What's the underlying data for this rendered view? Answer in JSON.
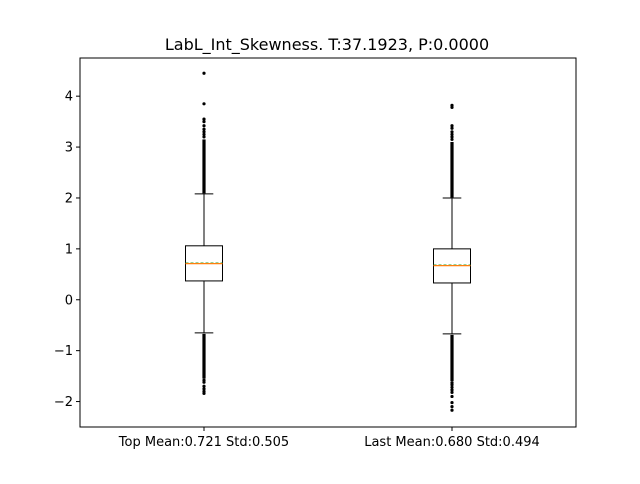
{
  "chart_data": {
    "type": "box",
    "title": "LabL_Int_Skewness. T:37.1923, P:0.0000",
    "categories": [
      "Top Mean:0.721 Std:0.505",
      "Last Mean:0.680 Std:0.494"
    ],
    "ylim": [
      -2.5,
      4.75
    ],
    "yticks": [
      -2,
      -1,
      0,
      1,
      2,
      3,
      4
    ],
    "grid": false,
    "boxes": [
      {
        "label": "Top Mean:0.721 Std:0.505",
        "whisker_low": -0.65,
        "q1": 0.37,
        "median": 0.71,
        "mean": 0.721,
        "q3": 1.06,
        "whisker_high": 2.08,
        "outliers_high_dense": [
          2.09,
          3.15
        ],
        "outliers_high_sparse": [
          3.2,
          3.25,
          3.3,
          3.35,
          3.42,
          3.5,
          3.55,
          3.85,
          4.45
        ],
        "outliers_low_dense": [
          -1.55,
          -0.67
        ],
        "outliers_low_sparse": [
          -1.58,
          -1.62,
          -1.7,
          -1.75,
          -1.8,
          -1.84
        ]
      },
      {
        "label": "Last Mean:0.680 Std:0.494",
        "whisker_low": -0.67,
        "q1": 0.33,
        "median": 0.67,
        "mean": 0.68,
        "q3": 1.0,
        "whisker_high": 2.0,
        "outliers_high_dense": [
          2.01,
          3.1
        ],
        "outliers_high_sparse": [
          3.15,
          3.2,
          3.25,
          3.3,
          3.37,
          3.42,
          3.78,
          3.82
        ],
        "outliers_low_dense": [
          -1.6,
          -0.69
        ],
        "outliers_low_sparse": [
          -1.63,
          -1.67,
          -1.72,
          -1.77,
          -1.82,
          -1.9,
          -2.02,
          -2.1,
          -2.17
        ]
      }
    ],
    "colors": {
      "box": "#000000",
      "median": "#ff7f0e",
      "mean": "#2ca02c",
      "flier": "#000000"
    }
  }
}
